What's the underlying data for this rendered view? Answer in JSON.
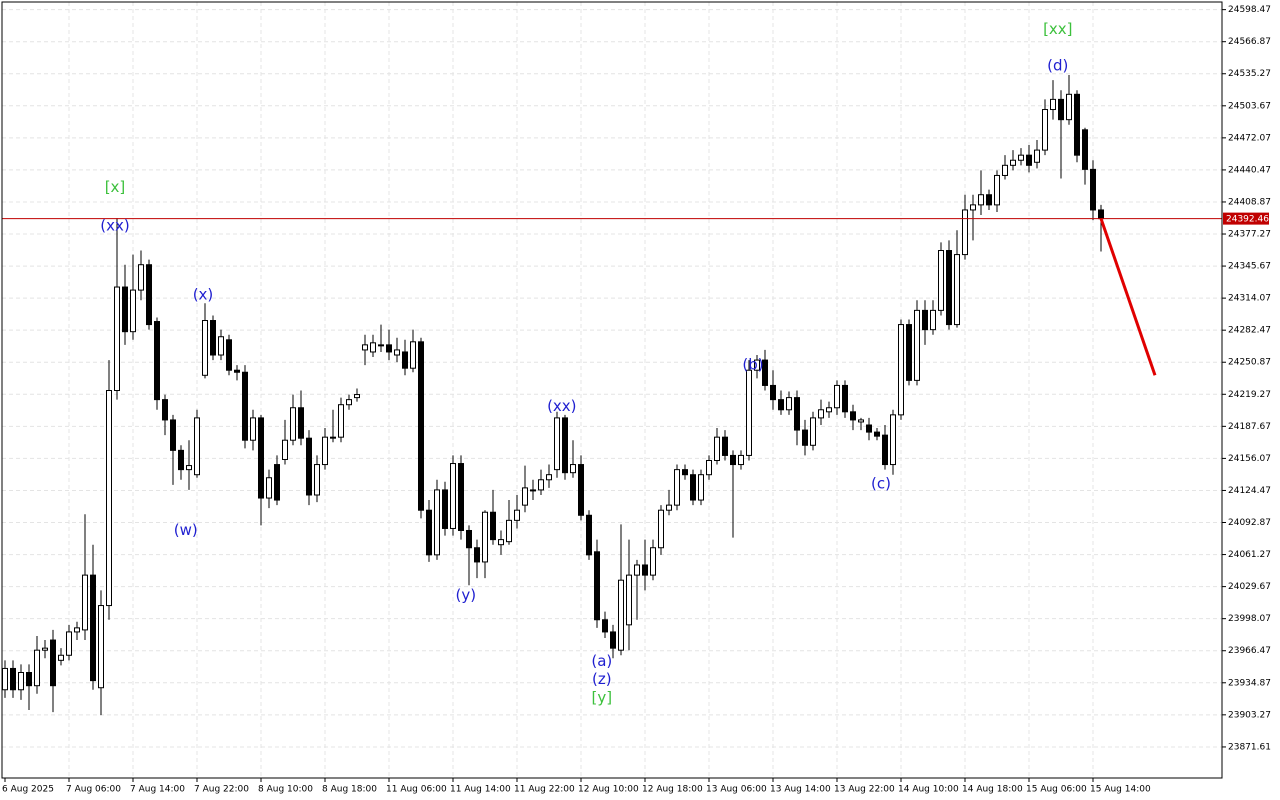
{
  "chart_data": {
    "type": "candlestick",
    "categories": [
      "6 Aug 2025",
      null,
      null,
      null,
      null,
      null,
      null,
      null,
      "7 Aug 06:00",
      null,
      null,
      null,
      null,
      null,
      null,
      null,
      "7 Aug 14:00",
      null,
      null,
      null,
      null,
      null,
      null,
      null,
      "7 Aug 22:00",
      null,
      null,
      null,
      null,
      null,
      null,
      null,
      "8 Aug 10:00",
      null,
      null,
      null,
      null,
      null,
      null,
      null,
      "8 Aug 18:00",
      null,
      null,
      null,
      null,
      null,
      null,
      null,
      "11 Aug 06:00",
      null,
      null,
      null,
      null,
      null,
      null,
      null,
      "11 Aug 14:00",
      null,
      null,
      null,
      null,
      null,
      null,
      null,
      "11 Aug 22:00",
      null,
      null,
      null,
      null,
      null,
      null,
      null,
      "12 Aug 10:00",
      null,
      null,
      null,
      null,
      null,
      null,
      null,
      "12 Aug 18:00",
      null,
      null,
      null,
      null,
      null,
      null,
      null,
      "13 Aug 06:00",
      null,
      null,
      null,
      null,
      null,
      null,
      null,
      "13 Aug 14:00",
      null,
      null,
      null,
      null,
      null,
      null,
      null,
      "13 Aug 22:00",
      null,
      null,
      null,
      null,
      null,
      null,
      null,
      "14 Aug 10:00",
      null,
      null,
      null,
      null,
      null,
      null,
      null,
      "14 Aug 18:00",
      null,
      null,
      null,
      null,
      null,
      null,
      null,
      "15 Aug 06:00",
      null,
      null,
      null,
      null,
      null,
      null,
      null,
      "15 Aug 14:00",
      null
    ],
    "open": [
      23928,
      23949,
      23928,
      23945,
      23932,
      23967,
      23977,
      23957,
      23962,
      23985,
      23987,
      24041,
      23930,
      24011,
      24223,
      24325,
      24281,
      24322,
      24347,
      24291,
      24214,
      24194,
      24164,
      24145,
      24140,
      24238,
      24292,
      24258,
      24273,
      24243,
      24241,
      24174,
      24196,
      24117,
      24150,
      24155,
      24174,
      24206,
      24176,
      24120,
      24150,
      24177,
      24177,
      24209,
      24216,
      24263,
      24261,
      24268,
      24268,
      24258,
      24261,
      24245,
      24271,
      24105,
      24061,
      24125,
      24087,
      24151,
      24085,
      24068,
      24054,
      24103,
      24071,
      24074,
      24095,
      24110,
      24125,
      24125,
      24135,
      24145,
      24196,
      24142,
      24150,
      24100,
      24064,
      23997,
      23985,
      23967,
      23992,
      24041,
      24051,
      24041,
      24068,
      24105,
      24110,
      24145,
      24140,
      24115,
      24140,
      24154,
      24177,
      24159,
      24150,
      24159,
      24243,
      24253,
      24228,
      24214,
      24204,
      24216,
      24184,
      24169,
      24196,
      24202,
      24206,
      24228,
      24202,
      24192,
      24189,
      24182,
      24179,
      24150,
      24199,
      24288,
      24233,
      24302,
      24283,
      24302,
      24361,
      24288,
      24357,
      24401,
      24406,
      24416,
      24406,
      24435,
      24445,
      24450,
      24455,
      24448,
      24460,
      24500,
      24510,
      24490,
      24515,
      24480,
      24441,
      24401
    ],
    "high": [
      23957,
      23957,
      23953,
      23953,
      23981,
      23977,
      23987,
      23969,
      23992,
      23995,
      24101,
      24071,
      24026,
      24253,
      24393,
      24347,
      24357,
      24361,
      24352,
      24295,
      24219,
      24199,
      24169,
      24174,
      24204,
      24309,
      24297,
      24283,
      24278,
      24248,
      24248,
      24204,
      24199,
      24145,
      24159,
      24194,
      24219,
      24223,
      24184,
      24159,
      24186,
      24204,
      24216,
      24219,
      24225,
      24278,
      24278,
      24288,
      24283,
      24275,
      24273,
      24283,
      24275,
      24115,
      24135,
      24133,
      24159,
      24159,
      24090,
      24076,
      24105,
      24125,
      24085,
      24115,
      24120,
      24149,
      24135,
      24145,
      24150,
      24202,
      24199,
      24174,
      24159,
      24105,
      24076,
      24005,
      23992,
      24091,
      24076,
      24056,
      24076,
      24076,
      24110,
      24125,
      24150,
      24150,
      24145,
      24145,
      24159,
      24186,
      24184,
      24164,
      24164,
      24253,
      24258,
      24263,
      24243,
      24223,
      24222,
      24223,
      24194,
      24202,
      24214,
      24212,
      24233,
      24233,
      24209,
      24196,
      24196,
      24186,
      24189,
      24204,
      24293,
      24293,
      24312,
      24312,
      24312,
      24369,
      24371,
      24381,
      24416,
      24416,
      24440,
      24421,
      24440,
      24455,
      24460,
      24462,
      24465,
      24470,
      24510,
      24529,
      24519,
      24534,
      24519,
      24482,
      24450,
      24406
    ],
    "low": [
      23920,
      23920,
      23918,
      23908,
      23924,
      23959,
      23906,
      23952,
      23957,
      23977,
      23977,
      23928,
      23903,
      23997,
      24214,
      24268,
      24273,
      24312,
      24283,
      24204,
      24179,
      24130,
      24135,
      24125,
      24137,
      24235,
      24253,
      24253,
      24238,
      24233,
      24166,
      24164,
      24090,
      24107,
      24110,
      24150,
      24169,
      24169,
      24110,
      24113,
      24145,
      24172,
      24172,
      24204,
      24212,
      24248,
      24256,
      24261,
      24253,
      24251,
      24238,
      24241,
      24097,
      24054,
      24056,
      24080,
      24080,
      24076,
      24031,
      24038,
      24038,
      24071,
      24061,
      24071,
      24087,
      24103,
      24115,
      24120,
      24127,
      24137,
      24135,
      24137,
      24095,
      24056,
      23989,
      23979,
      23959,
      23962,
      23967,
      23997,
      24026,
      24036,
      24061,
      24100,
      24105,
      24135,
      24110,
      24110,
      24135,
      24150,
      24154,
      24078,
      24145,
      24154,
      24235,
      24223,
      24204,
      24199,
      24199,
      24169,
      24159,
      24164,
      24189,
      24196,
      24199,
      24196,
      24184,
      24184,
      24174,
      24174,
      24145,
      24140,
      24194,
      24228,
      24228,
      24268,
      24278,
      24297,
      24283,
      24285,
      24352,
      24371,
      24396,
      24401,
      24399,
      24431,
      24440,
      24445,
      24438,
      24442,
      24455,
      24490,
      24432,
      24485,
      24448,
      24426,
      24391,
      24360
    ],
    "close": [
      23949,
      23928,
      23945,
      23932,
      23967,
      23969,
      23932,
      23962,
      23985,
      23989,
      24041,
      23937,
      24011,
      24223,
      24325,
      24281,
      24322,
      24347,
      24288,
      24214,
      24194,
      24164,
      24145,
      24149,
      24196,
      24292,
      24258,
      24276,
      24243,
      24241,
      24174,
      24196,
      24117,
      24137,
      24115,
      24174,
      24206,
      24176,
      24120,
      24150,
      24177,
      24177,
      24209,
      24214,
      24219,
      24268,
      24270,
      24268,
      24261,
      24263,
      24245,
      24271,
      24105,
      24061,
      24125,
      24087,
      24151,
      24085,
      24068,
      24054,
      24103,
      24076,
      24076,
      24095,
      24105,
      24127,
      24125,
      24135,
      24140,
      24196,
      24142,
      24150,
      24100,
      24061,
      23997,
      23985,
      23969,
      24036,
      24041,
      24051,
      24041,
      24068,
      24105,
      24110,
      24145,
      24140,
      24115,
      24140,
      24154,
      24177,
      24159,
      24150,
      24159,
      24243,
      24253,
      24228,
      24214,
      24204,
      24216,
      24184,
      24169,
      24196,
      24204,
      24206,
      24228,
      24202,
      24194,
      24194,
      24182,
      24178,
      24150,
      24199,
      24288,
      24233,
      24302,
      24283,
      24302,
      24361,
      24288,
      24357,
      24401,
      24406,
      24416,
      24406,
      24435,
      24445,
      24450,
      24455,
      24445,
      24460,
      24500,
      24510,
      24490,
      24515,
      24455,
      24441,
      24401,
      24392.46
    ],
    "up_color": "#ffffff",
    "down_color": "#000000",
    "ylim": [
      23841,
      24606
    ],
    "yticks": [
      24598.47,
      24566.87,
      24535.27,
      24503.67,
      24472.07,
      24440.47,
      24408.87,
      24377.27,
      24345.67,
      24314.07,
      24282.47,
      24250.87,
      24219.27,
      24187.67,
      24156.07,
      24124.47,
      24092.87,
      24061.27,
      24029.67,
      23998.07,
      23966.47,
      23934.87,
      23903.27,
      23871.61
    ],
    "grid": true,
    "current_price": 24392.46,
    "current_price_color": "#c00000",
    "forecast": {
      "color": "#e00000",
      "x": [
        137,
        143.75
      ],
      "values": [
        24392.46,
        24238
      ]
    },
    "annotations": [
      {
        "text": "[x]",
        "color": "#3cc03c",
        "x": 13.75,
        "y": 24423
      },
      {
        "text": "(xx)",
        "color": "#1f1fd0",
        "x": 13.75,
        "y": 24385
      },
      {
        "text": "(x)",
        "color": "#1f1fd0",
        "x": 24.75,
        "y": 24317
      },
      {
        "text": "(w)",
        "color": "#1f1fd0",
        "x": 22.6,
        "y": 24085
      },
      {
        "text": "(y)",
        "color": "#1f1fd0",
        "x": 57.6,
        "y": 24021
      },
      {
        "text": "(xx)",
        "color": "#1f1fd0",
        "x": 69.6,
        "y": 24207
      },
      {
        "text": "(a)",
        "color": "#1f1fd0",
        "x": 74.6,
        "y": 23956
      },
      {
        "text": "(z)",
        "color": "#1f1fd0",
        "x": 74.6,
        "y": 23938
      },
      {
        "text": "[y]",
        "color": "#3cc03c",
        "x": 74.6,
        "y": 23920
      },
      {
        "text": "(b)",
        "color": "#1f1fd0",
        "x": 93.5,
        "y": 24248
      },
      {
        "text": "(c)",
        "color": "#1f1fd0",
        "x": 109.5,
        "y": 24131
      },
      {
        "text": "(d)",
        "color": "#1f1fd0",
        "x": 131.6,
        "y": 24543
      },
      {
        "text": "[xx]",
        "color": "#3cc03c",
        "x": 131.6,
        "y": 24579
      }
    ]
  }
}
